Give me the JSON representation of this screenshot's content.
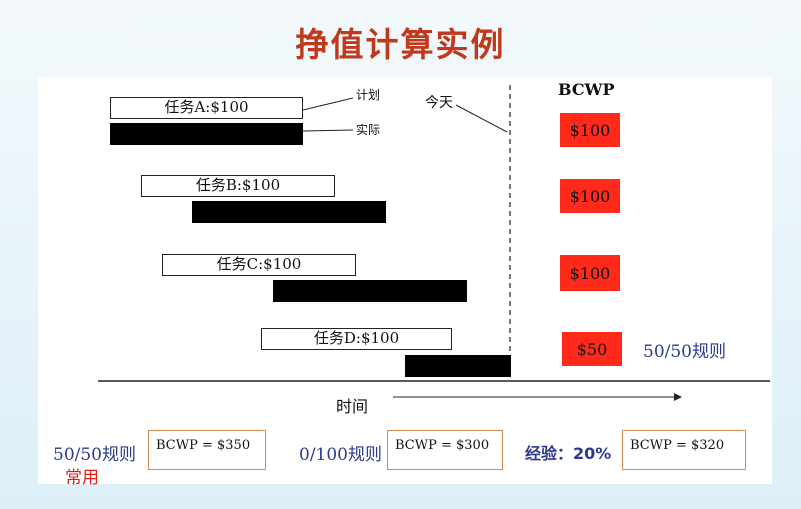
{
  "title": "挣值计算实例",
  "labels": {
    "plan": "计划",
    "actual": "实际",
    "today": "今天",
    "bcwp_header": "BCWP",
    "time_axis": "时间",
    "rule_5050_side": "50/50规则"
  },
  "tasks": [
    {
      "name": "任务A:$100",
      "bcwp": "$100"
    },
    {
      "name": "任务B:$100",
      "bcwp": "$100"
    },
    {
      "name": "任务C:$100",
      "bcwp": "$100"
    },
    {
      "name": "任务D:$100",
      "bcwp": "$50"
    }
  ],
  "results": [
    {
      "rule": "50/50规则",
      "value": "BCWP = $350"
    },
    {
      "rule": "0/100规则",
      "value": "BCWP = $300"
    },
    {
      "rule": "经验：20%",
      "value": "BCWP = $320"
    }
  ],
  "note": "常用",
  "colors": {
    "title": "#c0391c",
    "bcwp_fill": "#ff2a1a",
    "rule_text": "#2b3a8f",
    "note": "#e0201a"
  }
}
